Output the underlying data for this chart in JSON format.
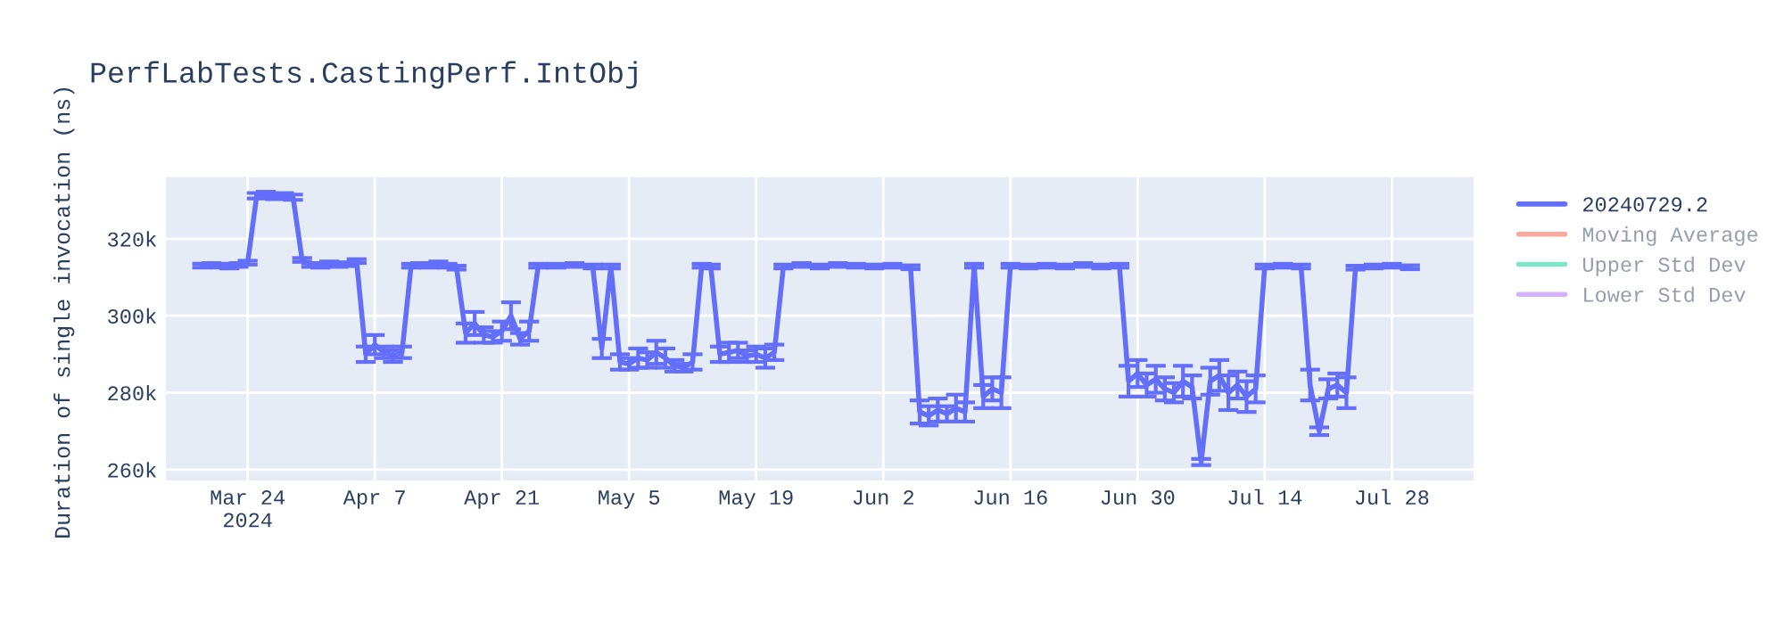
{
  "chart_data": {
    "type": "line",
    "title": "PerfLabTests.CastingPerf.IntObj",
    "ylabel": "Duration of single invocation (ns)",
    "x": [
      "2024-03-19",
      "2024-03-20",
      "2024-03-21",
      "2024-03-22",
      "2024-03-23",
      "2024-03-24",
      "2024-03-25",
      "2024-03-26",
      "2024-03-27",
      "2024-03-28",
      "2024-03-29",
      "2024-03-30",
      "2024-03-31",
      "2024-04-01",
      "2024-04-02",
      "2024-04-03",
      "2024-04-04",
      "2024-04-05",
      "2024-04-06",
      "2024-04-07",
      "2024-04-08",
      "2024-04-09",
      "2024-04-10",
      "2024-04-11",
      "2024-04-12",
      "2024-04-13",
      "2024-04-14",
      "2024-04-15",
      "2024-04-16",
      "2024-04-17",
      "2024-04-18",
      "2024-04-19",
      "2024-04-20",
      "2024-04-21",
      "2024-04-22",
      "2024-04-23",
      "2024-04-24",
      "2024-04-25",
      "2024-04-27",
      "2024-04-29",
      "2024-05-01",
      "2024-05-02",
      "2024-05-03",
      "2024-05-04",
      "2024-05-05",
      "2024-05-06",
      "2024-05-07",
      "2024-05-08",
      "2024-05-09",
      "2024-05-10",
      "2024-05-11",
      "2024-05-12",
      "2024-05-13",
      "2024-05-14",
      "2024-05-15",
      "2024-05-16",
      "2024-05-17",
      "2024-05-18",
      "2024-05-19",
      "2024-05-20",
      "2024-05-21",
      "2024-05-22",
      "2024-05-24",
      "2024-05-26",
      "2024-05-28",
      "2024-05-30",
      "2024-06-01",
      "2024-06-03",
      "2024-06-05",
      "2024-06-06",
      "2024-06-07",
      "2024-06-08",
      "2024-06-09",
      "2024-06-10",
      "2024-06-11",
      "2024-06-12",
      "2024-06-13",
      "2024-06-14",
      "2024-06-15",
      "2024-06-16",
      "2024-06-18",
      "2024-06-20",
      "2024-06-22",
      "2024-06-24",
      "2024-06-26",
      "2024-06-28",
      "2024-06-29",
      "2024-06-30",
      "2024-07-01",
      "2024-07-02",
      "2024-07-03",
      "2024-07-04",
      "2024-07-05",
      "2024-07-06",
      "2024-07-07",
      "2024-07-08",
      "2024-07-09",
      "2024-07-10",
      "2024-07-11",
      "2024-07-12",
      "2024-07-13",
      "2024-07-14",
      "2024-07-16",
      "2024-07-18",
      "2024-07-19",
      "2024-07-20",
      "2024-07-21",
      "2024-07-22",
      "2024-07-23",
      "2024-07-24",
      "2024-07-26",
      "2024-07-28",
      "2024-07-30"
    ],
    "series": [
      {
        "name": "20240729.2",
        "color": "#636efa",
        "values": [
          313000,
          313200,
          313000,
          312800,
          313200,
          313800,
          331200,
          331500,
          331000,
          331200,
          330800,
          314500,
          313200,
          313000,
          313600,
          313200,
          313400,
          314200,
          290000,
          292500,
          290500,
          289500,
          290500,
          313000,
          313200,
          313000,
          313600,
          313000,
          312500,
          295500,
          298000,
          295000,
          294500,
          296000,
          300000,
          294000,
          296000,
          313000,
          313000,
          313200,
          312800,
          291500,
          312800,
          288000,
          287500,
          289000,
          288500,
          290500,
          289000,
          287000,
          286500,
          288000,
          313000,
          312800,
          290000,
          290500,
          291000,
          289500,
          290000,
          289000,
          290500,
          312800,
          313200,
          312800,
          313200,
          313000,
          312800,
          313000,
          312600,
          275000,
          274000,
          275500,
          274500,
          276000,
          275000,
          313000,
          279000,
          281000,
          280000,
          313000,
          312800,
          313000,
          312800,
          313200,
          312800,
          313000,
          283000,
          285000,
          282000,
          283500,
          281000,
          280000,
          283000,
          281500,
          262000,
          283000,
          284500,
          280000,
          282000,
          279000,
          281000,
          312800,
          313000,
          312800,
          282000,
          270000,
          281000,
          282000,
          280000,
          312500,
          312800,
          313000,
          312600
        ],
        "errors": [
          500,
          500,
          500,
          500,
          500,
          500,
          700,
          700,
          700,
          700,
          700,
          500,
          500,
          500,
          500,
          500,
          500,
          500,
          2000,
          2500,
          1500,
          1500,
          1500,
          500,
          500,
          500,
          500,
          500,
          500,
          2500,
          3000,
          2000,
          1500,
          2500,
          3500,
          1500,
          2500,
          500,
          500,
          500,
          500,
          2500,
          500,
          2000,
          1500,
          2500,
          2000,
          3000,
          2500,
          1500,
          1000,
          2000,
          500,
          500,
          2000,
          2500,
          2000,
          1500,
          2000,
          2500,
          2000,
          500,
          500,
          500,
          500,
          500,
          500,
          500,
          500,
          3000,
          2500,
          3000,
          2000,
          3500,
          2500,
          500,
          3000,
          3000,
          4000,
          500,
          500,
          500,
          500,
          500,
          500,
          500,
          4000,
          3500,
          3000,
          3500,
          3000,
          2500,
          4000,
          3000,
          800,
          3500,
          4000,
          4500,
          3500,
          4000,
          3500,
          500,
          500,
          500,
          4000,
          1000,
          2500,
          3000,
          4000,
          500,
          500,
          500,
          500
        ]
      },
      {
        "name": "Moving Average",
        "color": "#ef553b",
        "values": [
          null,
          null,
          null,
          null,
          null,
          null,
          null,
          null,
          null,
          null,
          null,
          null,
          null,
          null,
          null,
          null,
          null,
          null,
          null,
          null,
          null,
          null,
          null,
          null,
          null,
          null,
          null,
          null,
          null,
          null,
          null,
          null,
          null,
          null,
          null,
          null,
          null,
          null,
          null,
          null,
          null,
          null,
          null,
          null,
          null,
          null,
          null,
          null,
          null,
          null,
          null,
          null,
          null,
          null,
          null,
          null,
          null,
          null,
          null,
          null,
          null,
          null,
          null,
          null,
          null,
          null,
          null,
          null,
          null,
          null,
          null,
          null,
          null,
          null,
          null,
          null,
          null,
          null,
          null,
          null,
          null,
          null,
          null,
          null,
          null,
          null,
          null,
          null,
          null,
          null,
          null,
          null,
          null,
          null,
          null,
          null,
          null,
          null,
          null,
          null,
          null,
          null,
          null,
          null,
          null,
          null,
          null,
          null,
          null,
          null,
          null,
          null,
          null
        ]
      },
      {
        "name": "Upper Std Dev",
        "color": "#00cc96",
        "values": [
          null,
          null,
          null,
          null,
          null,
          null,
          null,
          null,
          null,
          null,
          null,
          null,
          null,
          null,
          null,
          null,
          null,
          null,
          null,
          null,
          null,
          null,
          null,
          null,
          null,
          null,
          null,
          null,
          null,
          null,
          null,
          null,
          null,
          null,
          null,
          null,
          null,
          null,
          null,
          null,
          null,
          null,
          null,
          null,
          null,
          null,
          null,
          null,
          null,
          null,
          null,
          null,
          null,
          null,
          null,
          null,
          null,
          null,
          null,
          null,
          null,
          null,
          null,
          null,
          null,
          null,
          null,
          null,
          null,
          null,
          null,
          null,
          null,
          null,
          null,
          null,
          null,
          null,
          null,
          null,
          null,
          null,
          null,
          null,
          null,
          null,
          null,
          null,
          null,
          null,
          null,
          null,
          null,
          null,
          null,
          null,
          null,
          null,
          null,
          null,
          null,
          null,
          null,
          null,
          null,
          null,
          null,
          null,
          null,
          null,
          null,
          null,
          null
        ]
      },
      {
        "name": "Lower Std Dev",
        "color": "#ab63fa",
        "values": [
          null,
          null,
          null,
          null,
          null,
          null,
          null,
          null,
          null,
          null,
          null,
          null,
          null,
          null,
          null,
          null,
          null,
          null,
          null,
          null,
          null,
          null,
          null,
          null,
          null,
          null,
          null,
          null,
          null,
          null,
          null,
          null,
          null,
          null,
          null,
          null,
          null,
          null,
          null,
          null,
          null,
          null,
          null,
          null,
          null,
          null,
          null,
          null,
          null,
          null,
          null,
          null,
          null,
          null,
          null,
          null,
          null,
          null,
          null,
          null,
          null,
          null,
          null,
          null,
          null,
          null,
          null,
          null,
          null,
          null,
          null,
          null,
          null,
          null,
          null,
          null,
          null,
          null,
          null,
          null,
          null,
          null,
          null,
          null,
          null,
          null,
          null,
          null,
          null,
          null,
          null,
          null,
          null,
          null,
          null,
          null,
          null,
          null,
          null,
          null,
          null,
          null,
          null,
          null,
          null,
          null,
          null,
          null,
          null,
          null,
          null,
          null,
          null
        ]
      }
    ],
    "xlim": [
      "2024-03-15",
      "2024-08-06"
    ],
    "xticks": [
      {
        "value": "2024-03-24",
        "label": "Mar 24\n2024"
      },
      {
        "value": "2024-04-07",
        "label": "Apr 7"
      },
      {
        "value": "2024-04-21",
        "label": "Apr 21"
      },
      {
        "value": "2024-05-05",
        "label": "May 5"
      },
      {
        "value": "2024-05-19",
        "label": "May 19"
      },
      {
        "value": "2024-06-02",
        "label": "Jun 2"
      },
      {
        "value": "2024-06-16",
        "label": "Jun 16"
      },
      {
        "value": "2024-06-30",
        "label": "Jun 30"
      },
      {
        "value": "2024-07-14",
        "label": "Jul 14"
      },
      {
        "value": "2024-07-28",
        "label": "Jul 28"
      }
    ],
    "ylim": [
      257200,
      336000
    ],
    "yticks": [
      {
        "value": 260000,
        "label": "260k"
      },
      {
        "value": 280000,
        "label": "280k"
      },
      {
        "value": 300000,
        "label": "300k"
      },
      {
        "value": 320000,
        "label": "320k"
      }
    ],
    "grid": true,
    "legend": "right",
    "marker": "none",
    "line_style": "solid"
  }
}
